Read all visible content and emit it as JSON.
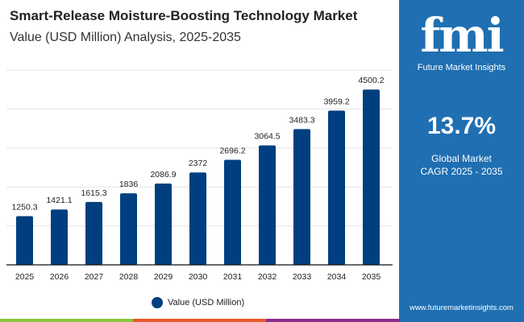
{
  "header": {
    "title": "Smart-Release Moisture-Boosting Technology Market",
    "subtitle": "Value (USD Million) Analysis, 2025-2035"
  },
  "panel": {
    "logo_text": "fmi",
    "logo_sub": "Future Market Insights",
    "cagr": "13.7%",
    "cagr_label1": "Global Market",
    "cagr_label2": "CAGR 2025 - 2035",
    "url": "www.futuremarketinsights.com"
  },
  "colors": {
    "bar": "#003f7f",
    "panel": "#1f6fb2",
    "stripes": [
      "#8cc63f",
      "#e8572a",
      "#8a2c8a",
      "#1f6fb2"
    ]
  },
  "chart_data": {
    "type": "bar",
    "title": "Value (USD Million) Analysis, 2025-2035",
    "categories": [
      "2025",
      "2026",
      "2027",
      "2028",
      "2029",
      "2030",
      "2031",
      "2032",
      "2033",
      "2034",
      "2035"
    ],
    "series": [
      {
        "name": "Value (USD Million)",
        "values": [
          1250.3,
          1421.1,
          1615.3,
          1836,
          2086.9,
          2372,
          2696.2,
          3064.5,
          3483.3,
          3959.2,
          4500.2
        ]
      }
    ],
    "labels": [
      "1250.3",
      "1421.1",
      "1615.3",
      "1836",
      "2086.9",
      "2372",
      "2696.2",
      "3064.5",
      "3483.3",
      "3959.2",
      "4500.2"
    ],
    "ylim": [
      0,
      5000
    ],
    "grid": true,
    "legend": "bottom"
  }
}
